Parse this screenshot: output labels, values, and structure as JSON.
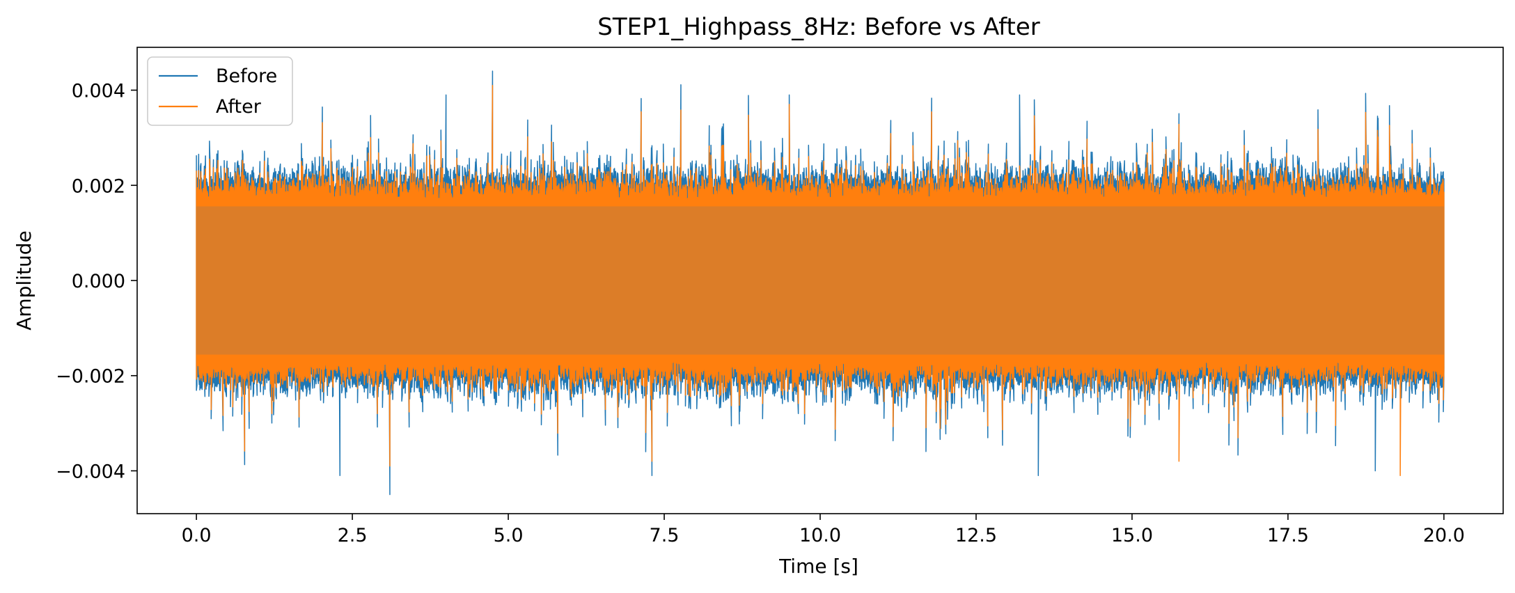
{
  "chart_data": {
    "type": "line",
    "title": "STEP1_Highpass_8Hz: Before vs After",
    "xlabel": "Time [s]",
    "ylabel": "Amplitude",
    "xlim": [
      -0.95,
      20.95
    ],
    "ylim": [
      -0.0049,
      0.0049
    ],
    "x_ticks": [
      0.0,
      2.5,
      5.0,
      7.5,
      10.0,
      12.5,
      15.0,
      17.5,
      20.0
    ],
    "x_tick_labels": [
      "0.0",
      "2.5",
      "5.0",
      "7.5",
      "10.0",
      "12.5",
      "15.0",
      "17.5",
      "20.0"
    ],
    "y_ticks": [
      -0.004,
      -0.002,
      0.0,
      0.002,
      0.004
    ],
    "y_tick_labels": [
      "−0.004",
      "−0.002",
      "0.000",
      "0.002",
      "0.004"
    ],
    "grid": false,
    "legend_position": "top-left",
    "x_range": [
      0.0,
      20.0
    ],
    "series": [
      {
        "name": "Before",
        "color": "#1f77b4",
        "description": "broadband noise, typical envelope about ±0.002, peaks near 0.0044 and -0.0045",
        "envelope_typical": 0.0021,
        "peaks": [
          {
            "x": 4.75,
            "y": 0.0044
          },
          {
            "x": 3.1,
            "y": -0.0045
          },
          {
            "x": 9.5,
            "y": 0.0039
          },
          {
            "x": 2.3,
            "y": -0.0041
          },
          {
            "x": 7.3,
            "y": -0.0041
          },
          {
            "x": 18.9,
            "y": -0.004
          },
          {
            "x": 13.5,
            "y": -0.0041
          },
          {
            "x": 4.0,
            "y": 0.0039
          },
          {
            "x": 13.2,
            "y": 0.0039
          }
        ]
      },
      {
        "name": "After",
        "color": "#ff7f0e",
        "description": "highpass filtered, overlaid on Before, slightly smaller envelope",
        "envelope_typical": 0.0019,
        "peaks": [
          {
            "x": 4.75,
            "y": 0.0041
          },
          {
            "x": 19.3,
            "y": -0.0041
          },
          {
            "x": 3.1,
            "y": -0.0039
          },
          {
            "x": 7.3,
            "y": -0.0038
          },
          {
            "x": 15.75,
            "y": -0.0038
          },
          {
            "x": 9.5,
            "y": 0.0037
          }
        ]
      }
    ]
  }
}
